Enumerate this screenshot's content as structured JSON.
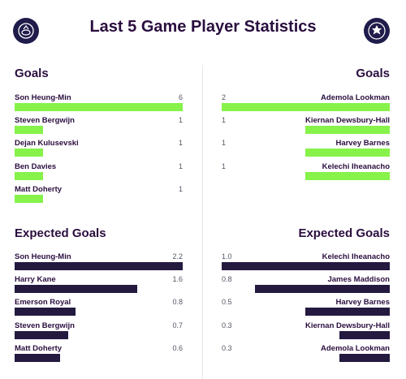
{
  "header": {
    "title": "Last 5 Game Player Statistics"
  },
  "colors": {
    "goals_bar": "#86f24a",
    "xg_bar": "#241a3f",
    "text": "#2a0e3f"
  },
  "icons": {
    "left_crest": "spurs-crest-icon",
    "right_crest": "leicester-crest-icon"
  },
  "left": {
    "goals_title": "Goals",
    "goals_max": 6,
    "goals": [
      {
        "name": "Son Heung-Min",
        "value": "6",
        "num": 6
      },
      {
        "name": "Steven Bergwijn",
        "value": "1",
        "num": 1
      },
      {
        "name": "Dejan Kulusevski",
        "value": "1",
        "num": 1
      },
      {
        "name": "Ben Davies",
        "value": "1",
        "num": 1
      },
      {
        "name": "Matt Doherty",
        "value": "1",
        "num": 1
      }
    ],
    "xg_title": "Expected Goals",
    "xg_max": 2.2,
    "xg": [
      {
        "name": "Son Heung-Min",
        "value": "2.2",
        "num": 2.2
      },
      {
        "name": "Harry Kane",
        "value": "1.6",
        "num": 1.6
      },
      {
        "name": "Emerson Royal",
        "value": "0.8",
        "num": 0.8
      },
      {
        "name": "Steven Bergwijn",
        "value": "0.7",
        "num": 0.7
      },
      {
        "name": "Matt Doherty",
        "value": "0.6",
        "num": 0.6
      }
    ]
  },
  "right": {
    "goals_title": "Goals",
    "goals_max": 2,
    "goals": [
      {
        "name": "Ademola Lookman",
        "value": "2",
        "num": 2
      },
      {
        "name": "Kiernan Dewsbury-Hall",
        "value": "1",
        "num": 1
      },
      {
        "name": "Harvey Barnes",
        "value": "1",
        "num": 1
      },
      {
        "name": "Kelechi Iheanacho",
        "value": "1",
        "num": 1
      }
    ],
    "xg_title": "Expected Goals",
    "xg_max": 1.0,
    "xg": [
      {
        "name": "Kelechi Iheanacho",
        "value": "1.0",
        "num": 1.0
      },
      {
        "name": "James Maddison",
        "value": "0.8",
        "num": 0.8
      },
      {
        "name": "Harvey Barnes",
        "value": "0.5",
        "num": 0.5
      },
      {
        "name": "Kiernan Dewsbury-Hall",
        "value": "0.3",
        "num": 0.3
      },
      {
        "name": "Ademola Lookman",
        "value": "0.3",
        "num": 0.3
      }
    ]
  }
}
